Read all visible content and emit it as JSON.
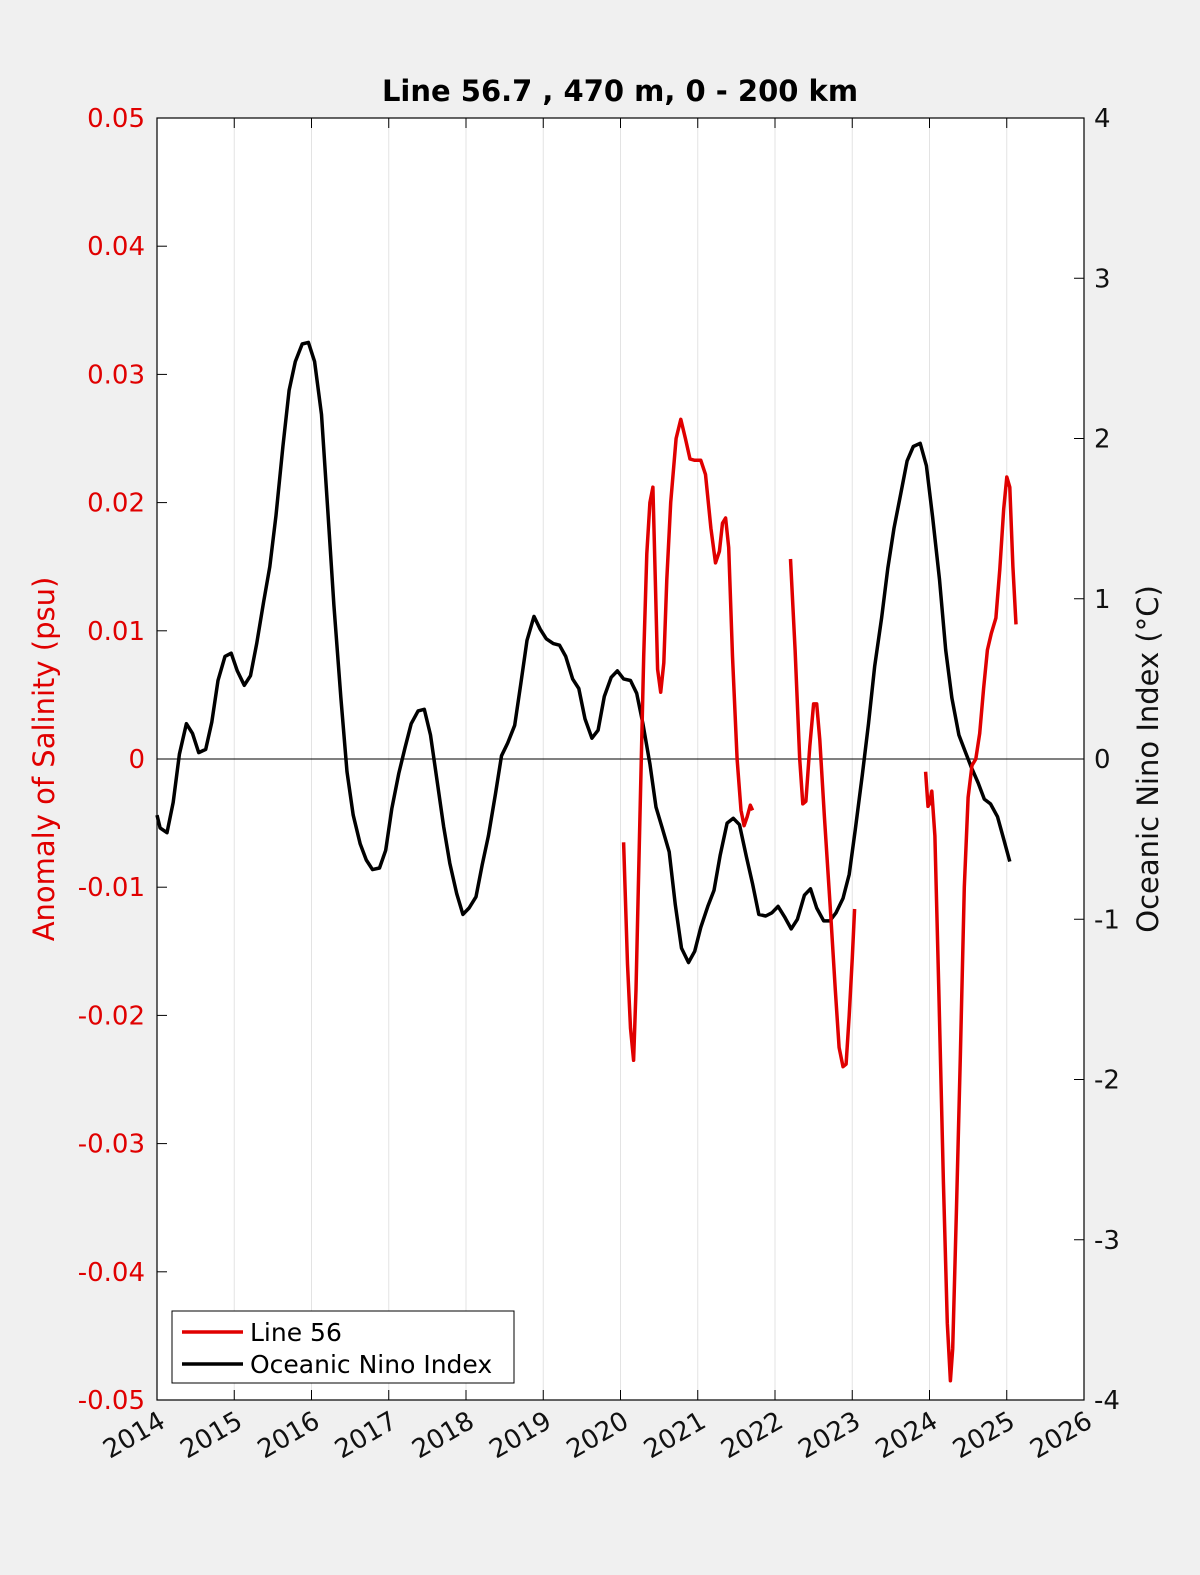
{
  "chart_data": {
    "type": "line",
    "title": "Line 56.7 , 470 m, 0 - 200 km",
    "xlabel": "",
    "ylabel_left": "Anomaly of Salinity (psu)",
    "ylabel_right": "Oceanic Nino Index (°C)",
    "xlim": [
      2014,
      2026
    ],
    "ylim_left": [
      -0.05,
      0.05
    ],
    "ylim_right": [
      -4,
      4
    ],
    "x_ticks": [
      "2014",
      "2015",
      "2016",
      "2017",
      "2018",
      "2019",
      "2020",
      "2021",
      "2022",
      "2023",
      "2024",
      "2025",
      "2026"
    ],
    "y_left_ticks": [
      "0.05",
      "0.04",
      "0.03",
      "0.02",
      "0.01",
      "0",
      "-0.01",
      "-0.02",
      "-0.03",
      "-0.04",
      "-0.05"
    ],
    "y_right_ticks": [
      "4",
      "3",
      "2",
      "1",
      "0",
      "-1",
      "-2",
      "-3",
      "-4"
    ],
    "grid": "vertical",
    "zero_line": true,
    "legend_position": "bottom-left",
    "colors": {
      "line56": "#e00000",
      "oni": "#000000",
      "left_axis": "#e00000"
    },
    "series": [
      {
        "name": "Line 56",
        "axis": "left",
        "segments": [
          [
            [
              2020.04,
              -0.0065
            ],
            [
              2020.09,
              -0.016
            ],
            [
              2020.13,
              -0.021
            ],
            [
              2020.17,
              -0.0235
            ],
            [
              2020.2,
              -0.018
            ],
            [
              2020.25,
              -0.005
            ],
            [
              2020.3,
              0.008
            ],
            [
              2020.34,
              0.016
            ],
            [
              2020.38,
              0.02
            ],
            [
              2020.42,
              0.0212
            ],
            [
              2020.45,
              0.014
            ],
            [
              2020.48,
              0.007
            ],
            [
              2020.52,
              0.0052
            ],
            [
              2020.56,
              0.0075
            ],
            [
              2020.6,
              0.014
            ],
            [
              2020.65,
              0.02
            ],
            [
              2020.72,
              0.025
            ],
            [
              2020.78,
              0.0265
            ],
            [
              2020.84,
              0.025
            ],
            [
              2020.9,
              0.0234
            ],
            [
              2020.96,
              0.0233
            ],
            [
              2021.04,
              0.0233
            ],
            [
              2021.1,
              0.0222
            ],
            [
              2021.17,
              0.018
            ],
            [
              2021.23,
              0.0153
            ],
            [
              2021.28,
              0.0162
            ],
            [
              2021.32,
              0.0184
            ],
            [
              2021.36,
              0.0188
            ],
            [
              2021.4,
              0.0165
            ],
            [
              2021.45,
              0.008
            ],
            [
              2021.51,
              0.0
            ],
            [
              2021.56,
              -0.004
            ],
            [
              2021.6,
              -0.0052
            ],
            [
              2021.64,
              -0.0045
            ],
            [
              2021.68,
              -0.0036
            ],
            [
              2021.71,
              -0.004
            ]
          ],
          [
            [
              2022.2,
              0.0156
            ],
            [
              2022.26,
              0.0085
            ],
            [
              2022.32,
              0.0
            ],
            [
              2022.36,
              -0.0035
            ],
            [
              2022.4,
              -0.0033
            ],
            [
              2022.45,
              0.001
            ],
            [
              2022.5,
              0.0043
            ],
            [
              2022.54,
              0.0043
            ],
            [
              2022.58,
              0.0015
            ],
            [
              2022.64,
              -0.0045
            ],
            [
              2022.72,
              -0.012
            ],
            [
              2022.78,
              -0.018
            ],
            [
              2022.83,
              -0.0225
            ],
            [
              2022.88,
              -0.024
            ],
            [
              2022.92,
              -0.0238
            ],
            [
              2022.96,
              -0.02
            ],
            [
              2023.0,
              -0.0155
            ],
            [
              2023.03,
              -0.0117
            ]
          ],
          [
            [
              2023.95,
              -0.001
            ],
            [
              2023.98,
              -0.0037
            ],
            [
              2024.0,
              -0.0035
            ],
            [
              2024.03,
              -0.0025
            ],
            [
              2024.07,
              -0.006
            ],
            [
              2024.12,
              -0.018
            ],
            [
              2024.18,
              -0.033
            ],
            [
              2024.23,
              -0.044
            ],
            [
              2024.27,
              -0.0485
            ],
            [
              2024.3,
              -0.046
            ],
            [
              2024.35,
              -0.035
            ],
            [
              2024.4,
              -0.023
            ],
            [
              2024.45,
              -0.01
            ],
            [
              2024.5,
              -0.003
            ],
            [
              2024.55,
              -0.0005
            ],
            [
              2024.6,
              0.0
            ],
            [
              2024.65,
              0.002
            ],
            [
              2024.7,
              0.0055
            ],
            [
              2024.75,
              0.0085
            ],
            [
              2024.8,
              0.0098
            ],
            [
              2024.86,
              0.011
            ],
            [
              2024.91,
              0.0148
            ],
            [
              2024.96,
              0.0195
            ],
            [
              2025.0,
              0.022
            ],
            [
              2025.04,
              0.0212
            ],
            [
              2025.08,
              0.015
            ],
            [
              2025.12,
              0.0105
            ]
          ]
        ]
      },
      {
        "name": "Oceanic Nino Index",
        "axis": "right",
        "x": [
          2014.0,
          2014.04,
          2014.13,
          2014.21,
          2014.29,
          2014.38,
          2014.46,
          2014.54,
          2014.63,
          2014.71,
          2014.79,
          2014.88,
          2014.96,
          2015.04,
          2015.13,
          2015.21,
          2015.29,
          2015.38,
          2015.46,
          2015.54,
          2015.63,
          2015.71,
          2015.79,
          2015.88,
          2015.96,
          2016.04,
          2016.13,
          2016.21,
          2016.29,
          2016.38,
          2016.46,
          2016.54,
          2016.63,
          2016.71,
          2016.79,
          2016.88,
          2016.96,
          2017.04,
          2017.13,
          2017.21,
          2017.29,
          2017.38,
          2017.46,
          2017.54,
          2017.63,
          2017.71,
          2017.79,
          2017.88,
          2017.96,
          2018.04,
          2018.13,
          2018.21,
          2018.29,
          2018.38,
          2018.46,
          2018.54,
          2018.63,
          2018.71,
          2018.79,
          2018.88,
          2018.96,
          2019.04,
          2019.13,
          2019.21,
          2019.29,
          2019.38,
          2019.46,
          2019.54,
          2019.63,
          2019.71,
          2019.79,
          2019.88,
          2019.96,
          2020.04,
          2020.13,
          2020.21,
          2020.29,
          2020.38,
          2020.46,
          2020.54,
          2020.63,
          2020.71,
          2020.79,
          2020.88,
          2020.96,
          2021.04,
          2021.13,
          2021.21,
          2021.29,
          2021.38,
          2021.46,
          2021.54,
          2021.63,
          2021.71,
          2021.79,
          2021.88,
          2021.96,
          2022.04,
          2022.13,
          2022.21,
          2022.29,
          2022.38,
          2022.46,
          2022.54,
          2022.63,
          2022.71,
          2022.79,
          2022.88,
          2022.96,
          2023.04,
          2023.13,
          2023.21,
          2023.29,
          2023.38,
          2023.46,
          2023.54,
          2023.63,
          2023.71,
          2023.79,
          2023.88,
          2023.96,
          2024.04,
          2024.13,
          2024.21,
          2024.29,
          2024.38,
          2024.46,
          2024.54,
          2024.63,
          2024.71,
          2024.79,
          2024.88,
          2024.96,
          2025.04
        ],
        "y": [
          -0.35,
          -0.43,
          -0.46,
          -0.27,
          0.03,
          0.22,
          0.16,
          0.04,
          0.06,
          0.23,
          0.49,
          0.64,
          0.66,
          0.55,
          0.46,
          0.52,
          0.72,
          0.98,
          1.2,
          1.52,
          1.95,
          2.3,
          2.48,
          2.59,
          2.6,
          2.48,
          2.15,
          1.56,
          0.96,
          0.38,
          -0.08,
          -0.35,
          -0.53,
          -0.63,
          -0.69,
          -0.68,
          -0.57,
          -0.31,
          -0.09,
          0.07,
          0.22,
          0.3,
          0.31,
          0.15,
          -0.15,
          -0.42,
          -0.65,
          -0.84,
          -0.97,
          -0.93,
          -0.86,
          -0.66,
          -0.48,
          -0.22,
          0.02,
          0.1,
          0.21,
          0.47,
          0.74,
          0.89,
          0.81,
          0.75,
          0.72,
          0.71,
          0.64,
          0.5,
          0.44,
          0.25,
          0.13,
          0.18,
          0.39,
          0.51,
          0.55,
          0.5,
          0.49,
          0.41,
          0.22,
          -0.03,
          -0.3,
          -0.43,
          -0.58,
          -0.91,
          -1.18,
          -1.27,
          -1.2,
          -1.05,
          -0.92,
          -0.82,
          -0.6,
          -0.4,
          -0.37,
          -0.41,
          -0.61,
          -0.78,
          -0.97,
          -0.98,
          -0.96,
          -0.92,
          -0.99,
          -1.06,
          -1.0,
          -0.85,
          -0.81,
          -0.93,
          -1.01,
          -1.01,
          -0.96,
          -0.87,
          -0.72,
          -0.44,
          -0.1,
          0.22,
          0.58,
          0.88,
          1.19,
          1.44,
          1.66,
          1.86,
          1.95,
          1.97,
          1.83,
          1.51,
          1.12,
          0.68,
          0.38,
          0.15,
          0.05,
          -0.05,
          -0.15,
          -0.25,
          -0.28,
          -0.36,
          -0.5,
          -0.64
        ]
      }
    ]
  }
}
